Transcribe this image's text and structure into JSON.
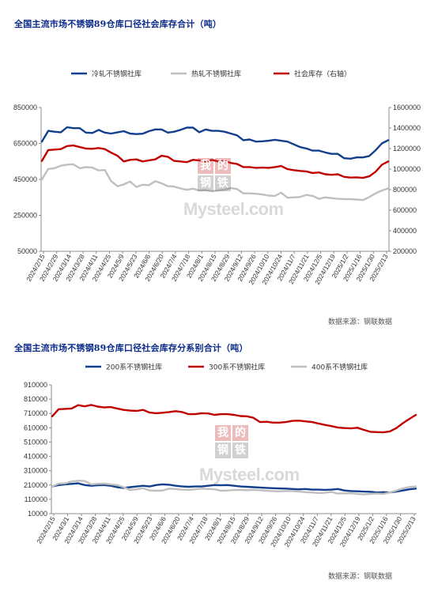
{
  "page": {
    "watermark": {
      "glyphs": [
        "我",
        "的",
        "钢",
        "铁"
      ],
      "brand": "Mysteel.com"
    }
  },
  "charts": [
    {
      "title": "全国主流市场不锈钢89仓库口径社会库存合计（吨）",
      "source": "数据来源：钢联数据"
    },
    {
      "title": "全国主流市场不锈钢89仓库口径社会库存分系别合计（吨）",
      "source": "数据来源：钢联数据"
    }
  ],
  "chart_data": [
    {
      "type": "line",
      "title": "全国主流市场不锈钢89仓库口径社会库存合计（吨）",
      "x_tick_labels": [
        "2024/2/15",
        "2024/2/29",
        "2024/3/14",
        "2024/3/28",
        "2024/4/11",
        "2024/4/25",
        "2024/5/9",
        "2024/5/23",
        "2024/6/6",
        "2024/6/20",
        "2024/7/4",
        "2024/7/18",
        "2024/8/1",
        "2024/8/15",
        "2024/8/29",
        "2024/9/12",
        "2024/9/26",
        "2024/10/10",
        "2024/10/24",
        "2024/11/7",
        "2024/11/21",
        "2024/12/5",
        "2024/12/19",
        "2025/1/2",
        "2025/1/16",
        "2025/1/30",
        "2025/2/13"
      ],
      "ylim_left": [
        50000,
        850000
      ],
      "yticks_left": [
        "50000",
        "250000",
        "450000",
        "650000",
        "850000"
      ],
      "ylim_right": [
        200000,
        1600000
      ],
      "yticks_right": [
        "200000",
        "400000",
        "600000",
        "800000",
        "1000000",
        "1200000",
        "1400000",
        "1600000"
      ],
      "legend_position": "top",
      "grid": false,
      "series": [
        {
          "name": "冷轧不锈钢社库",
          "axis": "left",
          "color": "#123f8c",
          "values": [
            660000,
            720000,
            715000,
            712000,
            740000,
            735000,
            735000,
            710000,
            708000,
            725000,
            710000,
            705000,
            712000,
            718000,
            705000,
            702000,
            704000,
            718000,
            728000,
            728000,
            710000,
            715000,
            725000,
            738000,
            738000,
            712000,
            728000,
            720000,
            720000,
            715000,
            705000,
            695000,
            668000,
            672000,
            660000,
            662000,
            665000,
            670000,
            665000,
            660000,
            645000,
            630000,
            622000,
            610000,
            610000,
            600000,
            592000,
            592000,
            568000,
            565000,
            572000,
            572000,
            580000,
            612000,
            650000,
            668000
          ]
        },
        {
          "name": "热轧不锈钢社库",
          "axis": "left",
          "color": "#bfbfbf",
          "values": [
            450000,
            508000,
            512000,
            526000,
            532000,
            534000,
            512000,
            518000,
            516000,
            500000,
            502000,
            440000,
            412000,
            422000,
            438000,
            408000,
            420000,
            418000,
            440000,
            428000,
            412000,
            410000,
            400000,
            392000,
            398000,
            388000,
            390000,
            384000,
            388000,
            392000,
            402000,
            396000,
            372000,
            372000,
            370000,
            366000,
            360000,
            358000,
            376000,
            348000,
            350000,
            352000,
            364000,
            358000,
            342000,
            350000,
            346000,
            342000,
            340000,
            340000,
            338000,
            335000,
            352000,
            372000,
            388000,
            400000
          ]
        },
        {
          "name": "社会库存（右轴）",
          "axis": "right",
          "color": "#c00000",
          "values": [
            1080000,
            1185000,
            1190000,
            1195000,
            1225000,
            1230000,
            1215000,
            1200000,
            1198000,
            1205000,
            1195000,
            1160000,
            1130000,
            1075000,
            1090000,
            1095000,
            1075000,
            1085000,
            1095000,
            1130000,
            1120000,
            1080000,
            1075000,
            1068000,
            1090000,
            1085000,
            1070000,
            1090000,
            1075000,
            1080000,
            1060000,
            1050000,
            1020000,
            1020000,
            1012000,
            1015000,
            1012000,
            1020000,
            1030000,
            1000000,
            990000,
            982000,
            978000,
            962000,
            968000,
            950000,
            945000,
            950000,
            925000,
            918000,
            920000,
            915000,
            930000,
            975000,
            1042000,
            1075000
          ]
        }
      ]
    },
    {
      "type": "line",
      "title": "全国主流市场不锈钢89仓库口径社会库存分系别合计（吨）",
      "x_tick_labels": [
        "2024/2/15",
        "2024/3/1",
        "2024/3/14",
        "2024/3/28",
        "2024/4/11",
        "2024/4/25",
        "2024/5/9",
        "2024/5/23",
        "2024/6/6",
        "2024/6/20",
        "2024/7/4",
        "2024/7/18",
        "2024/8/1",
        "2024/8/15",
        "2024/8/29",
        "2024/9/12",
        "2024/9/26",
        "2024/10/10",
        "2024/10/24",
        "2024/11/7",
        "2024/11/21",
        "2024/12/5",
        "2024/12/19",
        "2025/1/2",
        "2025/1/16",
        "2025/1/30",
        "2025/2/13"
      ],
      "ylim": [
        10000,
        910000
      ],
      "yticks": [
        "10000",
        "110000",
        "210000",
        "310000",
        "410000",
        "510000",
        "610000",
        "710000",
        "810000",
        "910000"
      ],
      "legend_position": "top",
      "grid": false,
      "series": [
        {
          "name": "200系不锈钢社库",
          "color": "#123f8c",
          "values": [
            200000,
            210000,
            215000,
            218000,
            222000,
            210000,
            205000,
            208000,
            210000,
            205000,
            195000,
            190000,
            195000,
            200000,
            205000,
            200000,
            210000,
            215000,
            212000,
            205000,
            200000,
            198000,
            200000,
            200000,
            205000,
            210000,
            208000,
            210000,
            205000,
            200000,
            198000,
            195000,
            193000,
            190000,
            188000,
            186000,
            185000,
            182000,
            180000,
            182000,
            178000,
            178000,
            176000,
            178000,
            182000,
            172000,
            168000,
            166000,
            164000,
            163000,
            158000,
            160000,
            158000,
            164000,
            172000,
            180000,
            185000
          ]
        },
        {
          "name": "300系不锈钢社库",
          "color": "#c00000",
          "values": [
            690000,
            740000,
            742000,
            745000,
            768000,
            760000,
            770000,
            758000,
            752000,
            755000,
            745000,
            735000,
            730000,
            728000,
            735000,
            716000,
            712000,
            715000,
            720000,
            726000,
            720000,
            705000,
            705000,
            712000,
            710000,
            700000,
            705000,
            705000,
            700000,
            692000,
            690000,
            680000,
            650000,
            652000,
            646000,
            646000,
            650000,
            658000,
            660000,
            655000,
            650000,
            640000,
            630000,
            622000,
            612000,
            608000,
            606000,
            610000,
            595000,
            582000,
            580000,
            578000,
            585000,
            608000,
            642000,
            672000,
            700000
          ]
        },
        {
          "name": "400系不锈钢社库",
          "color": "#bfbfbf",
          "values": [
            200000,
            220000,
            222000,
            235000,
            240000,
            238000,
            215000,
            218000,
            220000,
            215000,
            210000,
            195000,
            175000,
            180000,
            188000,
            172000,
            170000,
            172000,
            185000,
            182000,
            178000,
            176000,
            180000,
            185000,
            182000,
            180000,
            170000,
            172000,
            175000,
            176000,
            174000,
            176000,
            174000,
            170000,
            168000,
            166000,
            168000,
            168000,
            164000,
            160000,
            158000,
            154000,
            156000,
            162000,
            150000,
            152000,
            152000,
            148000,
            145000,
            148000,
            150000,
            148000,
            158000,
            172000,
            186000,
            196000,
            200000
          ]
        }
      ]
    }
  ]
}
